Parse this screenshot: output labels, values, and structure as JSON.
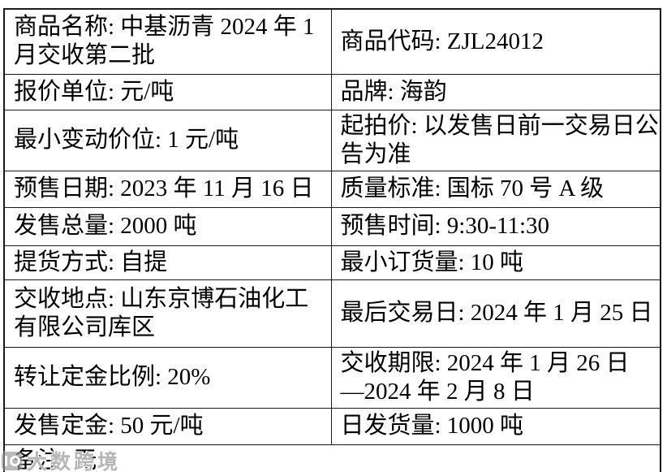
{
  "colors": {
    "border": "#1b1b1b",
    "text": "#000000",
    "background": "#ffffff",
    "watermark": "#9e9e9e"
  },
  "table": {
    "rows": [
      {
        "left": "商品名称: 中基沥青 2024 年 1\n月交收第二批",
        "right": "商品代码: ZJL24012"
      },
      {
        "left": "报价单位: 元/吨",
        "right": "品牌: 海韵"
      },
      {
        "left": "最小变动价位: 1 元/吨",
        "right": "起拍价: 以发售日前一交易日公\n告为准"
      },
      {
        "left": "预售日期: 2023 年 11 月 16 日",
        "right": "质量标准: 国标 70 号 A 级"
      },
      {
        "left": "发售总量: 2000 吨",
        "right": "预售时间: 9:30-11:30"
      },
      {
        "left": "提货方式: 自提",
        "right": "最小订货量: 10 吨"
      },
      {
        "left": "交收地点: 山东京博石油化工\n有限公司库区",
        "right": "最后交易日: 2024 年 1 月 25 日"
      },
      {
        "left": "转让定金比例: 20%",
        "right": "交收期限: 2024 年 1 月 26 日\n—2024 年 2 月 8 日"
      },
      {
        "left": "发售定金: 50 元/吨",
        "right": "日发货量: 1000 吨"
      },
      {
        "full": "备注: 无"
      }
    ]
  },
  "watermark": {
    "text": "大数跨境"
  }
}
